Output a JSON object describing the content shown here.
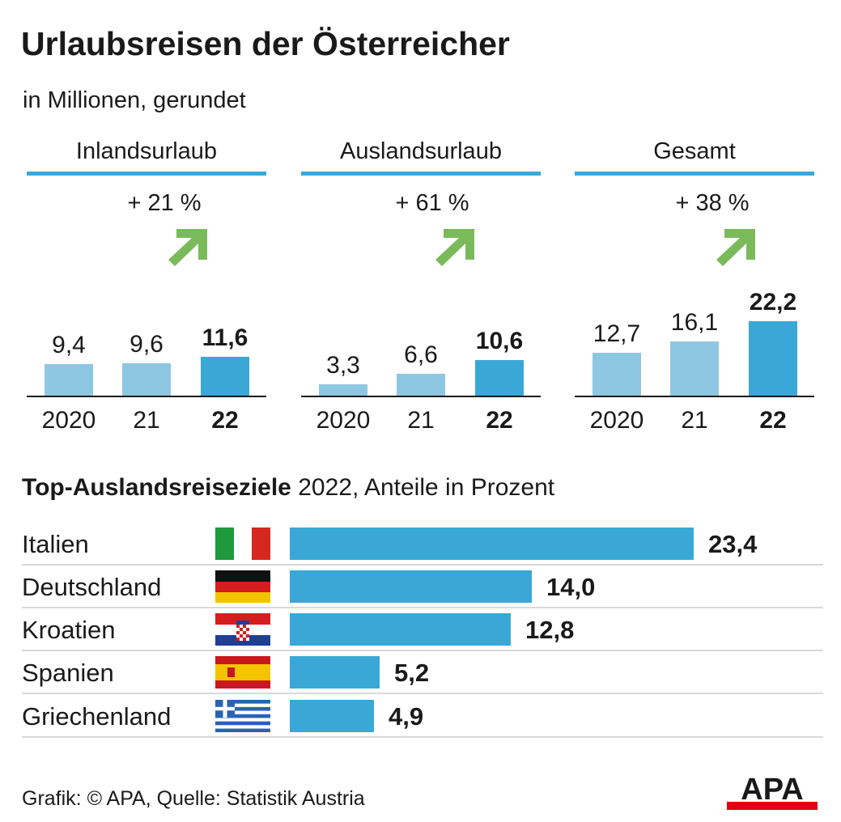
{
  "title": "Urlaubsreisen der Österreicher",
  "subtitle": "in Millionen, gerundet",
  "colors": {
    "accent": "#3aa8d6",
    "bar_light": "#8ec7e2",
    "bar_dark": "#3aa8d6",
    "arrow": "#7aba5b",
    "axis": "#1a1a1a",
    "logo_red": "#e1000f"
  },
  "chart_data": [
    {
      "type": "bar",
      "title": "Inlandsurlaub",
      "change": "+ 21 %",
      "categories": [
        "2020",
        "21",
        "22"
      ],
      "values": [
        9.4,
        9.6,
        11.6
      ],
      "value_labels": [
        "9,4",
        "9,6",
        "11,6"
      ],
      "highlight_index": 2,
      "ylim": [
        0,
        22.2
      ]
    },
    {
      "type": "bar",
      "title": "Auslandsurlaub",
      "change": "+ 61 %",
      "categories": [
        "2020",
        "21",
        "22"
      ],
      "values": [
        3.3,
        6.6,
        10.6
      ],
      "value_labels": [
        "3,3",
        "6,6",
        "10,6"
      ],
      "highlight_index": 2,
      "ylim": [
        0,
        22.2
      ]
    },
    {
      "type": "bar",
      "title": "Gesamt",
      "change": "+ 38 %",
      "categories": [
        "2020",
        "21",
        "22"
      ],
      "values": [
        12.7,
        16.1,
        22.2
      ],
      "value_labels": [
        "12,7",
        "16,1",
        "22,2"
      ],
      "highlight_index": 2,
      "ylim": [
        0,
        22.2
      ]
    },
    {
      "type": "bar",
      "orientation": "horizontal",
      "title_bold": "Top-Auslandsreiseziele",
      "title_rest": " 2022, Anteile in Prozent",
      "categories": [
        "Italien",
        "Deutschland",
        "Kroatien",
        "Spanien",
        "Griechenland"
      ],
      "flags": [
        "flag-italy",
        "flag-germany",
        "flag-croatia",
        "flag-spain",
        "flag-greece"
      ],
      "values": [
        23.4,
        14.0,
        12.8,
        5.2,
        4.9
      ],
      "value_labels": [
        "23,4",
        "14,0",
        "12,8",
        "5,2",
        "4,9"
      ],
      "xlim": [
        0,
        23.4
      ]
    }
  ],
  "source": "Grafik: © APA, Quelle: Statistik Austria",
  "logo_text": "APA"
}
